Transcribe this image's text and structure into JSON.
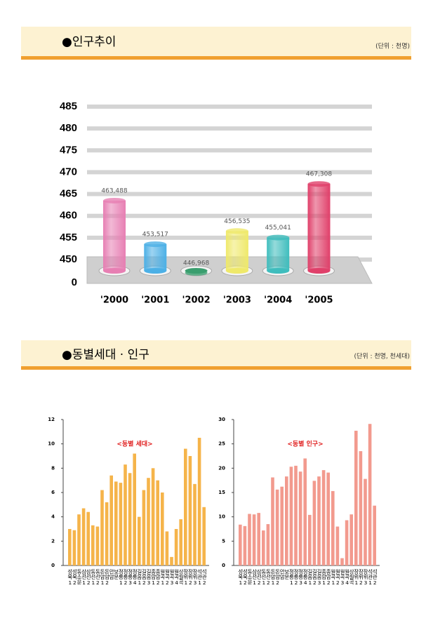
{
  "sections": [
    {
      "title": "●인구추이",
      "unit": "(단위 : 천명)"
    },
    {
      "title": "●동별세대 · 인구",
      "unit": "(단위 : 천명, 천세대)"
    }
  ],
  "chart_data": [
    {
      "type": "cylinder",
      "categories": [
        "'2000",
        "'2001",
        "'2002",
        "'2003",
        "'2004",
        "'2005"
      ],
      "values": [
        463.488,
        453.517,
        446.968,
        456.535,
        455.041,
        467.308
      ],
      "value_labels": [
        "463,488",
        "453,517",
        "446,968",
        "456,535",
        "455,041",
        "467,308"
      ],
      "colors": [
        "#e77fb3",
        "#4cb0e6",
        "#3a9e6e",
        "#efe96a",
        "#3fbdbd",
        "#e0406a"
      ],
      "ylim": [
        0,
        485
      ],
      "axis_break": [
        0,
        450
      ],
      "yticks": [
        0,
        450,
        455,
        460,
        465,
        470,
        475,
        480,
        485
      ],
      "grid": true
    },
    {
      "type": "bar",
      "title": "<동별 세대>",
      "color": "#f5b44a",
      "categories": [
        "성북1",
        "성북2",
        "동소문",
        "삼선1",
        "삼선2",
        "동선1",
        "동선2",
        "돈암1",
        "돈암2",
        "안암",
        "보문",
        "정릉1",
        "정릉2",
        "정릉3",
        "정릉4",
        "길음1",
        "길음2",
        "길음3",
        "종암1",
        "종암2",
        "월곡1",
        "월곡2",
        "월곡3",
        "월곡4",
        "상월곡",
        "장위1",
        "장위2",
        "장위3",
        "석관1",
        "석관2"
      ],
      "values": [
        3.0,
        2.9,
        4.2,
        4.7,
        4.4,
        3.3,
        3.2,
        6.2,
        5.2,
        7.4,
        6.9,
        6.8,
        8.3,
        7.6,
        9.2,
        4.0,
        6.2,
        7.2,
        8.0,
        7.0,
        6.0,
        2.8,
        0.7,
        3.0,
        3.8,
        9.6,
        9.0,
        6.7,
        10.5,
        4.8
      ],
      "ylim": [
        0,
        12
      ],
      "yticks": [
        0,
        2,
        4,
        6,
        8,
        10,
        12
      ]
    },
    {
      "type": "bar",
      "title": "<동별 인구>",
      "color": "#f29a8e",
      "categories": [
        "성북1",
        "성북2",
        "동소문",
        "삼선1",
        "삼선2",
        "동선1",
        "동선2",
        "돈암1",
        "돈암2",
        "안암",
        "보문",
        "정릉1",
        "정릉2",
        "정릉3",
        "정릉4",
        "길음1",
        "길음2",
        "길음3",
        "종암1",
        "종암2",
        "월곡1",
        "월곡2",
        "월곡3",
        "월곡4",
        "상월곡",
        "장위1",
        "장위2",
        "장위3",
        "석관1",
        "석관2"
      ],
      "values": [
        8.4,
        8.1,
        10.6,
        10.5,
        10.8,
        7.2,
        8.5,
        18.1,
        15.6,
        16.2,
        18.3,
        20.3,
        20.5,
        19.3,
        22.0,
        10.4,
        17.4,
        18.3,
        19.6,
        19.1,
        15.3,
        8.0,
        1.5,
        9.3,
        10.5,
        27.7,
        23.5,
        17.8,
        29.1,
        12.3
      ],
      "ylim": [
        0,
        30
      ],
      "yticks": [
        0,
        5,
        10,
        15,
        20,
        25,
        30
      ]
    }
  ]
}
